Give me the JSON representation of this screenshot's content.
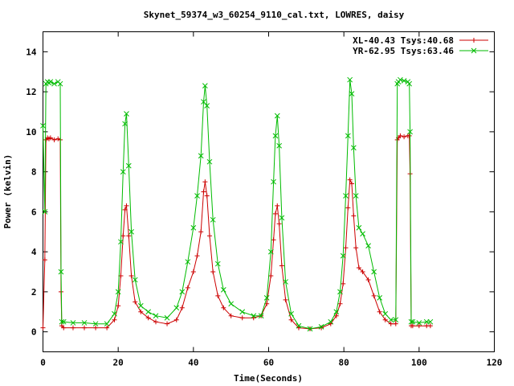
{
  "chart_data": {
    "type": "line",
    "title": "Skynet_59374_w3_60254_9110_cal.txt, LOWRES, daisy",
    "xlabel": "Time(Seconds)",
    "ylabel": "Power (kelvin)",
    "xlim": [
      0,
      120
    ],
    "ylim": [
      -1,
      15
    ],
    "xticks": [
      0,
      20,
      40,
      60,
      80,
      100,
      120
    ],
    "yticks": [
      0,
      2,
      4,
      6,
      8,
      10,
      12,
      14
    ],
    "x_tick_labels": [
      "0",
      "20",
      "40",
      "60",
      "80",
      "100",
      "120"
    ],
    "y_tick_labels": [
      "0",
      "2",
      "4",
      "6",
      "8",
      "10",
      "12",
      "14"
    ],
    "grid": false,
    "legend_position": "top-right",
    "series": [
      {
        "name": "XL-40.43 Tsys:40.68",
        "color": "#cc0000",
        "marker": "plus",
        "x": [
          0,
          0.5,
          0.8,
          1.2,
          1.6,
          2,
          3,
          4,
          4.6,
          4.8,
          5.0,
          5.5,
          8,
          11,
          14,
          17,
          19,
          20,
          20.7,
          21.3,
          21.8,
          22.2,
          22.8,
          23.5,
          24.5,
          26,
          28,
          30,
          33,
          35.5,
          37,
          38.5,
          40,
          41,
          42,
          42.7,
          43.1,
          43.6,
          44.3,
          45.2,
          46.5,
          48,
          50,
          53,
          56,
          58,
          59.5,
          60.6,
          61.3,
          61.8,
          62.3,
          62.8,
          63.5,
          64.5,
          66,
          68,
          71,
          74,
          76.5,
          78,
          79,
          79.8,
          80.5,
          81.1,
          81.6,
          82.1,
          82.6,
          83.2,
          84,
          85,
          86.5,
          88,
          89.5,
          91,
          92.5,
          93.8,
          94.2,
          94.5,
          95,
          96,
          97,
          97.4,
          97.6,
          97.9,
          98.3,
          100,
          102,
          103
        ],
        "y": [
          0.2,
          3.6,
          9.6,
          9.7,
          9.65,
          9.7,
          9.6,
          9.65,
          9.6,
          2.0,
          0.3,
          0.2,
          0.2,
          0.2,
          0.2,
          0.2,
          0.6,
          1.3,
          2.8,
          4.8,
          6.1,
          6.3,
          4.8,
          2.8,
          1.5,
          1.0,
          0.7,
          0.5,
          0.4,
          0.6,
          1.2,
          2.2,
          3.0,
          3.8,
          5.0,
          7.0,
          7.5,
          6.8,
          4.8,
          3.0,
          1.8,
          1.2,
          0.8,
          0.7,
          0.7,
          0.8,
          1.4,
          2.8,
          4.6,
          5.9,
          6.3,
          5.4,
          3.3,
          1.6,
          0.6,
          0.2,
          0.15,
          0.2,
          0.4,
          0.8,
          1.4,
          2.4,
          4.2,
          6.2,
          7.6,
          7.4,
          5.8,
          4.2,
          3.2,
          3.0,
          2.6,
          1.8,
          1.0,
          0.6,
          0.4,
          0.4,
          9.6,
          9.7,
          9.8,
          9.75,
          9.8,
          9.8,
          7.9,
          0.3,
          0.3,
          0.3,
          0.3,
          0.3
        ]
      },
      {
        "name": "YR-62.95 Tsys:63.46",
        "color": "#00bb00",
        "marker": "cross",
        "x": [
          0,
          0.5,
          0.8,
          1.2,
          1.6,
          2,
          3,
          4,
          4.6,
          4.8,
          5.0,
          5.5,
          8,
          11,
          14,
          17,
          19,
          20,
          20.7,
          21.3,
          21.8,
          22.2,
          22.8,
          23.5,
          24.5,
          26,
          28,
          30,
          33,
          35.5,
          37,
          38.5,
          40,
          41,
          42,
          42.7,
          43.1,
          43.6,
          44.3,
          45.2,
          46.5,
          48,
          50,
          53,
          56,
          58,
          59.5,
          60.6,
          61.3,
          61.8,
          62.3,
          62.8,
          63.5,
          64.5,
          66,
          68,
          71,
          74,
          76.5,
          78,
          79,
          79.8,
          80.5,
          81.1,
          81.6,
          82.1,
          82.6,
          83.2,
          84,
          85,
          86.5,
          88,
          89.5,
          91,
          92.5,
          93.8,
          94.2,
          94.5,
          95,
          96,
          97,
          97.4,
          97.6,
          97.9,
          98.3,
          100,
          102,
          103
        ],
        "y": [
          10.3,
          6.0,
          12.4,
          12.5,
          12.45,
          12.5,
          12.4,
          12.5,
          12.4,
          3.0,
          0.5,
          0.5,
          0.45,
          0.45,
          0.4,
          0.4,
          0.9,
          2.0,
          4.5,
          8.0,
          10.4,
          10.9,
          8.3,
          5.0,
          2.6,
          1.3,
          1.0,
          0.8,
          0.7,
          1.2,
          2.0,
          3.5,
          5.2,
          6.8,
          8.8,
          11.5,
          12.3,
          11.3,
          8.5,
          5.6,
          3.4,
          2.1,
          1.4,
          1.0,
          0.8,
          0.8,
          1.7,
          4.0,
          7.5,
          9.8,
          10.8,
          9.3,
          5.7,
          2.5,
          0.9,
          0.3,
          0.15,
          0.25,
          0.5,
          1.0,
          2.0,
          3.8,
          6.8,
          9.8,
          12.6,
          11.9,
          9.2,
          6.8,
          5.2,
          4.9,
          4.3,
          3.0,
          1.7,
          0.9,
          0.6,
          0.6,
          12.4,
          12.5,
          12.6,
          12.55,
          12.5,
          12.4,
          10.0,
          0.5,
          0.5,
          0.45,
          0.5,
          0.5
        ]
      }
    ]
  }
}
